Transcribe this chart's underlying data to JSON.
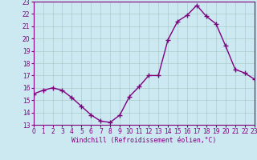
{
  "x": [
    0,
    1,
    2,
    3,
    4,
    5,
    6,
    7,
    8,
    9,
    10,
    11,
    12,
    13,
    14,
    15,
    16,
    17,
    18,
    19,
    20,
    21,
    22,
    23
  ],
  "y": [
    15.5,
    15.8,
    16.0,
    15.8,
    15.2,
    14.5,
    13.8,
    13.3,
    13.2,
    13.8,
    15.3,
    16.1,
    17.0,
    17.0,
    19.9,
    21.4,
    21.9,
    22.7,
    21.8,
    21.2,
    19.4,
    17.5,
    17.2,
    16.7
  ],
  "line_color": "#800080",
  "marker": "+",
  "marker_size": 4,
  "linewidth": 1.0,
  "bg_color": "#cce8f0",
  "grid_color": "#aacccc",
  "xlabel": "Windchill (Refroidissement éolien,°C)",
  "xlabel_color": "#800080",
  "tick_color": "#800080",
  "axis_color": "#800080",
  "ylim": [
    13,
    23
  ],
  "xlim": [
    0,
    23
  ],
  "yticks": [
    13,
    14,
    15,
    16,
    17,
    18,
    19,
    20,
    21,
    22,
    23
  ],
  "xticks": [
    0,
    1,
    2,
    3,
    4,
    5,
    6,
    7,
    8,
    9,
    10,
    11,
    12,
    13,
    14,
    15,
    16,
    17,
    18,
    19,
    20,
    21,
    22,
    23
  ],
  "tick_fontsize": 5.5,
  "xlabel_fontsize": 5.8
}
